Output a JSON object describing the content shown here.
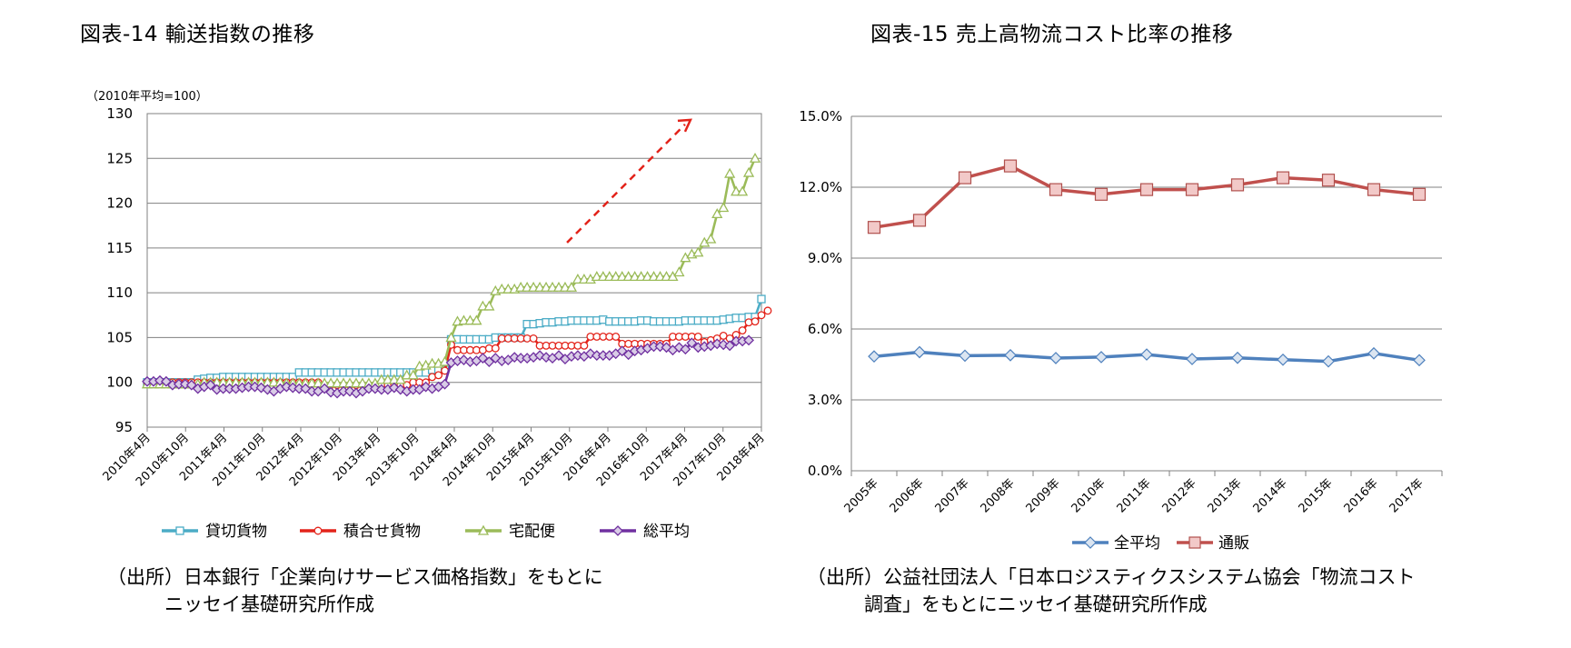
{
  "figures": [
    {
      "title": "図表-14  輸送指数の推移",
      "source": "（出所）日本銀行「企業向けサービス価格指数」をもとに\n　　　ニッセイ基礎研究所作成"
    },
    {
      "title": "図表-15  売上高物流コスト比率の推移",
      "source": "（出所）公益社団法人「日本ロジスティクスシステム協会「物流コスト\n　　　調査」をもとにニッセイ基礎研究所作成"
    }
  ],
  "chart_data": [
    {
      "type": "line",
      "title": "図表-14  輸送指数の推移",
      "unit_label": "（2010年平均=100）",
      "ylim": [
        95,
        130
      ],
      "y_ticks": [
        95,
        100,
        105,
        110,
        115,
        120,
        125,
        130
      ],
      "x_ticks": [
        "2010年4月",
        "2010年10月",
        "2011年4月",
        "2011年10月",
        "2012年4月",
        "2012年10月",
        "2013年4月",
        "2013年10月",
        "2014年4月",
        "2014年10月",
        "2015年4月",
        "2015年10月",
        "2016年4月",
        "2016年10月",
        "2017年4月",
        "2017年10月",
        "2018年4月"
      ],
      "grid": true,
      "legend_position": "bottom",
      "annotation": "dashed red upward arrow",
      "series": [
        {
          "name": "貸切貨物",
          "color": "#4bacc6",
          "marker": "square",
          "values": [
            100,
            100,
            100,
            100,
            100,
            100,
            100,
            100,
            100.3,
            100.4,
            100.5,
            100.5,
            100.6,
            100.6,
            100.6,
            100.6,
            100.6,
            100.6,
            100.6,
            100.6,
            100.6,
            100.6,
            100.6,
            100.6,
            101.1,
            101.1,
            101.1,
            101.1,
            101.1,
            101.1,
            101.1,
            101.1,
            101.1,
            101.1,
            101.1,
            101.1,
            101.1,
            101.1,
            101.1,
            101.1,
            101.1,
            101.1,
            101.1,
            101.1,
            101.1,
            101.4,
            101.4,
            101.4,
            104.8,
            104.8,
            104.8,
            104.8,
            104.8,
            104.8,
            104.8,
            105,
            105,
            105,
            105,
            105,
            106.5,
            106.5,
            106.6,
            106.7,
            106.7,
            106.8,
            106.8,
            106.9,
            106.9,
            106.9,
            106.9,
            106.9,
            107,
            106.8,
            106.8,
            106.8,
            106.8,
            106.8,
            106.9,
            106.9,
            106.8,
            106.8,
            106.8,
            106.8,
            106.8,
            106.9,
            106.9,
            106.9,
            106.9,
            106.9,
            106.9,
            107,
            107.1,
            107.2,
            107.2,
            107.3,
            107.3,
            109.3
          ]
        },
        {
          "name": "積合せ貨物",
          "color": "#e3231a",
          "marker": "circle",
          "values": [
            100,
            100,
            100,
            100,
            100,
            100,
            100,
            100,
            100,
            100,
            100,
            100,
            100,
            100,
            100,
            100,
            100,
            100,
            100,
            100,
            100,
            100,
            100,
            100,
            100,
            100,
            100,
            100,
            99.7,
            99.7,
            99.7,
            99.7,
            99.7,
            99.7,
            99.7,
            99.7,
            99.7,
            99.7,
            99.7,
            99.7,
            99.7,
            99.7,
            100,
            100,
            100,
            100.6,
            100.8,
            101.3,
            104.2,
            103.6,
            103.6,
            103.6,
            103.6,
            103.6,
            103.8,
            103.8,
            104.9,
            104.9,
            104.9,
            104.9,
            104.9,
            104.9,
            104.1,
            104.1,
            104.1,
            104.1,
            104.1,
            104.1,
            104.1,
            104.1,
            105.1,
            105.1,
            105.1,
            105.1,
            105.1,
            104.3,
            104.3,
            104.3,
            104.3,
            104.3,
            104.3,
            104.3,
            104.3,
            105.1,
            105.1,
            105.1,
            105.1,
            105.1,
            104.5,
            104.7,
            104.9,
            105.2,
            104.9,
            105.3,
            105.8,
            106.7,
            106.8,
            107.5,
            108
          ]
        },
        {
          "name": "宅配便",
          "color": "#9bbb59",
          "marker": "triangle",
          "values": [
            99.8,
            99.8,
            99.8,
            99.8,
            99.8,
            99.8,
            99.8,
            99.8,
            99.8,
            100,
            100,
            100,
            100,
            100,
            100,
            100,
            100,
            100,
            100,
            100,
            100,
            100,
            99.9,
            99.9,
            99.9,
            99.9,
            99.9,
            99.9,
            99.9,
            99.9,
            99.9,
            99.9,
            99.9,
            99.9,
            99.9,
            99.9,
            99.9,
            100.3,
            100.3,
            100.3,
            100.3,
            100.8,
            100.8,
            101.8,
            101.9,
            102.1,
            102.1,
            102.3,
            105,
            106.8,
            106.9,
            106.9,
            106.9,
            108.5,
            108.5,
            110.2,
            110.4,
            110.4,
            110.4,
            110.6,
            110.6,
            110.6,
            110.6,
            110.6,
            110.6,
            110.6,
            110.6,
            110.6,
            111.5,
            111.5,
            111.5,
            111.8,
            111.8,
            111.8,
            111.8,
            111.8,
            111.8,
            111.8,
            111.8,
            111.8,
            111.8,
            111.8,
            111.8,
            111.8,
            112.3,
            113.9,
            114.3,
            114.5,
            115.6,
            116,
            118.8,
            119.5,
            123.3,
            121.3,
            121.3,
            123.4,
            125
          ]
        },
        {
          "name": "総平均",
          "color": "#7030a0",
          "marker": "diamond",
          "values": [
            100.1,
            100.1,
            100.2,
            100.1,
            99.7,
            99.8,
            99.8,
            99.7,
            99.3,
            99.5,
            99.7,
            99.2,
            99.3,
            99.3,
            99.3,
            99.4,
            99.5,
            99.5,
            99.4,
            99.2,
            99,
            99.3,
            99.5,
            99.4,
            99.3,
            99.3,
            99,
            99,
            99.3,
            98.9,
            98.8,
            99,
            99,
            98.8,
            99,
            99.3,
            99.3,
            99.2,
            99.2,
            99.4,
            99.2,
            99,
            99.2,
            99.2,
            99.5,
            99.3,
            99.5,
            99.8,
            102.2,
            102.4,
            102.5,
            102.3,
            102.4,
            102.7,
            102.3,
            102.7,
            102.4,
            102.5,
            102.8,
            102.7,
            102.7,
            102.8,
            103,
            102.8,
            102.7,
            103,
            102.6,
            102.9,
            103,
            102.9,
            103.2,
            103,
            103,
            103,
            103.2,
            103.5,
            103.1,
            103.5,
            103.6,
            103.8,
            104,
            104,
            103.9,
            103.6,
            103.9,
            103.7,
            104.4,
            103.9,
            104,
            104.1,
            104.3,
            104.2,
            104.1,
            104.6,
            104.6,
            104.7
          ]
        }
      ]
    },
    {
      "type": "line",
      "title": "図表-15  売上高物流コスト比率の推移",
      "categories": [
        "2005年",
        "2006年",
        "2007年",
        "2008年",
        "2009年",
        "2010年",
        "2011年",
        "2012年",
        "2013年",
        "2014年",
        "2015年",
        "2016年",
        "2017年"
      ],
      "ylim": [
        0,
        15
      ],
      "y_ticks": [
        "0.0%",
        "3.0%",
        "6.0%",
        "9.0%",
        "12.0%",
        "15.0%"
      ],
      "grid": true,
      "legend_position": "bottom",
      "series": [
        {
          "name": "全平均",
          "color": "#4f81bd",
          "marker": "diamond",
          "values": [
            4.84,
            5.02,
            4.87,
            4.89,
            4.77,
            4.81,
            4.92,
            4.73,
            4.78,
            4.7,
            4.63,
            4.97,
            4.68
          ]
        },
        {
          "name": "通販",
          "color": "#c0504d",
          "marker": "square",
          "values": [
            10.3,
            10.6,
            12.4,
            12.9,
            11.9,
            11.7,
            11.9,
            11.9,
            12.1,
            12.4,
            12.3,
            11.9,
            11.7
          ]
        }
      ]
    }
  ]
}
